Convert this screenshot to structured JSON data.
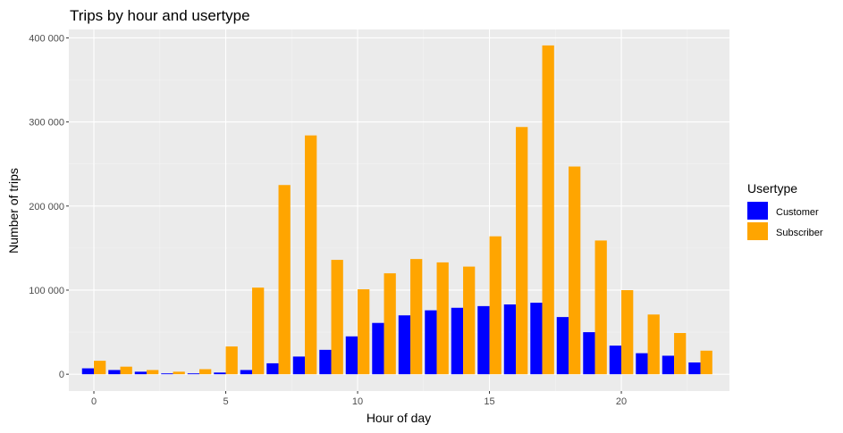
{
  "chart_data": {
    "type": "bar",
    "title": "Trips by hour and usertype",
    "xlabel": "Hour of day",
    "ylabel": "Number of trips",
    "x": [
      0,
      1,
      2,
      3,
      4,
      5,
      6,
      7,
      8,
      9,
      10,
      11,
      12,
      13,
      14,
      15,
      16,
      17,
      18,
      19,
      20,
      21,
      22,
      23
    ],
    "xticks": [
      0,
      5,
      10,
      15,
      20
    ],
    "xtick_labels": [
      "0",
      "5",
      "10",
      "15",
      "20"
    ],
    "xlim": [
      -0.95,
      24.1
    ],
    "ylim": [
      -20000,
      410000
    ],
    "yticks": [
      0,
      100000,
      200000,
      300000,
      400000
    ],
    "ytick_labels": [
      "0",
      "100 000",
      "200 000",
      "300 000",
      "400 000"
    ],
    "grid": true,
    "legend_position": "right",
    "legend_title": "Usertype",
    "series": [
      {
        "name": "Customer",
        "color": "#0000ff",
        "values": [
          7000,
          5000,
          3000,
          1000,
          1000,
          2000,
          5000,
          13000,
          21000,
          29000,
          45000,
          61000,
          70000,
          76000,
          79000,
          81000,
          83000,
          85000,
          68000,
          50000,
          34000,
          25000,
          22000,
          14000
        ]
      },
      {
        "name": "Subscriber",
        "color": "#ffa500",
        "values": [
          16000,
          9000,
          5000,
          3000,
          6000,
          33000,
          103000,
          225000,
          284000,
          136000,
          101000,
          120000,
          137000,
          133000,
          128000,
          164000,
          294000,
          391000,
          247000,
          159000,
          100000,
          71000,
          49000,
          28000
        ]
      }
    ]
  },
  "colors": {
    "panel": "#ebebeb",
    "grid_major": "#ffffff",
    "grid_minor": "#f4f4f4"
  }
}
